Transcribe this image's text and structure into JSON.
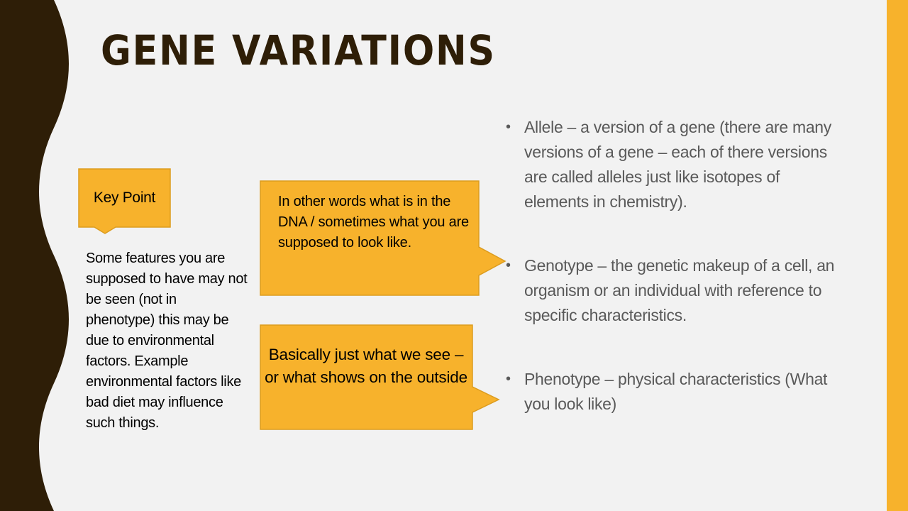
{
  "colors": {
    "background": "#f2f2f2",
    "wave_band": "#2e1e07",
    "accent_bar": "#f7b22c",
    "callout_fill": "#f7b22c",
    "callout_border": "#dc9c1f",
    "title_text": "#2e1e07",
    "bullet_text": "#595959",
    "body_text": "#000000"
  },
  "slide": {
    "title": "GENE VARIATIONS"
  },
  "callouts": {
    "key_point": "Key Point",
    "dna_note": "In other words what is in the DNA / sometimes what you are supposed to look like.",
    "see_note": "Basically just what we see – or what shows on the outside"
  },
  "side_note": "Some features you are supposed to have may not be seen (not in phenotype) this may be due to environmental factors. Example environmental factors like bad diet may influence such things.",
  "bullets": [
    {
      "marker": "•",
      "text": "Allele – a version of a gene (there are many versions of a gene – each of there versions are called alleles just like isotopes of elements in chemistry)."
    },
    {
      "marker": "•",
      "text": "Genotype – the genetic makeup of a cell, an organism or an individual with reference to specific characteristics."
    },
    {
      "marker": "•",
      "text": "Phenotype – physical characteristics (What you look like)"
    }
  ]
}
